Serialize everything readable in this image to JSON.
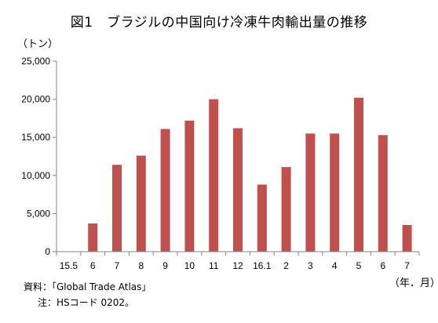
{
  "title": "図1　ブラジルの中国向け冷凍牛肉輸出量の推移",
  "y_unit": "（トン）",
  "x_unit": "（年．月）",
  "source": "資料：「Global Trade Atlas」",
  "note": "注：HSコード 0202。",
  "bar_color": "#c0504d",
  "chart_data": {
    "type": "bar",
    "categories": [
      "15.5",
      "6",
      "7",
      "8",
      "9",
      "10",
      "11",
      "12",
      "16.1",
      "2",
      "3",
      "4",
      "5",
      "6",
      "7"
    ],
    "values": [
      0,
      3700,
      11400,
      12600,
      16100,
      17200,
      20000,
      16200,
      8800,
      11100,
      15500,
      15500,
      20200,
      15300,
      3500
    ],
    "ylim": [
      0,
      25000
    ],
    "yticks": [
      0,
      5000,
      10000,
      15000,
      20000,
      25000
    ],
    "ytick_labels": [
      "0",
      "5,000",
      "10,000",
      "15,000",
      "20,000",
      "25,000"
    ],
    "grid": false,
    "legend": "none"
  }
}
